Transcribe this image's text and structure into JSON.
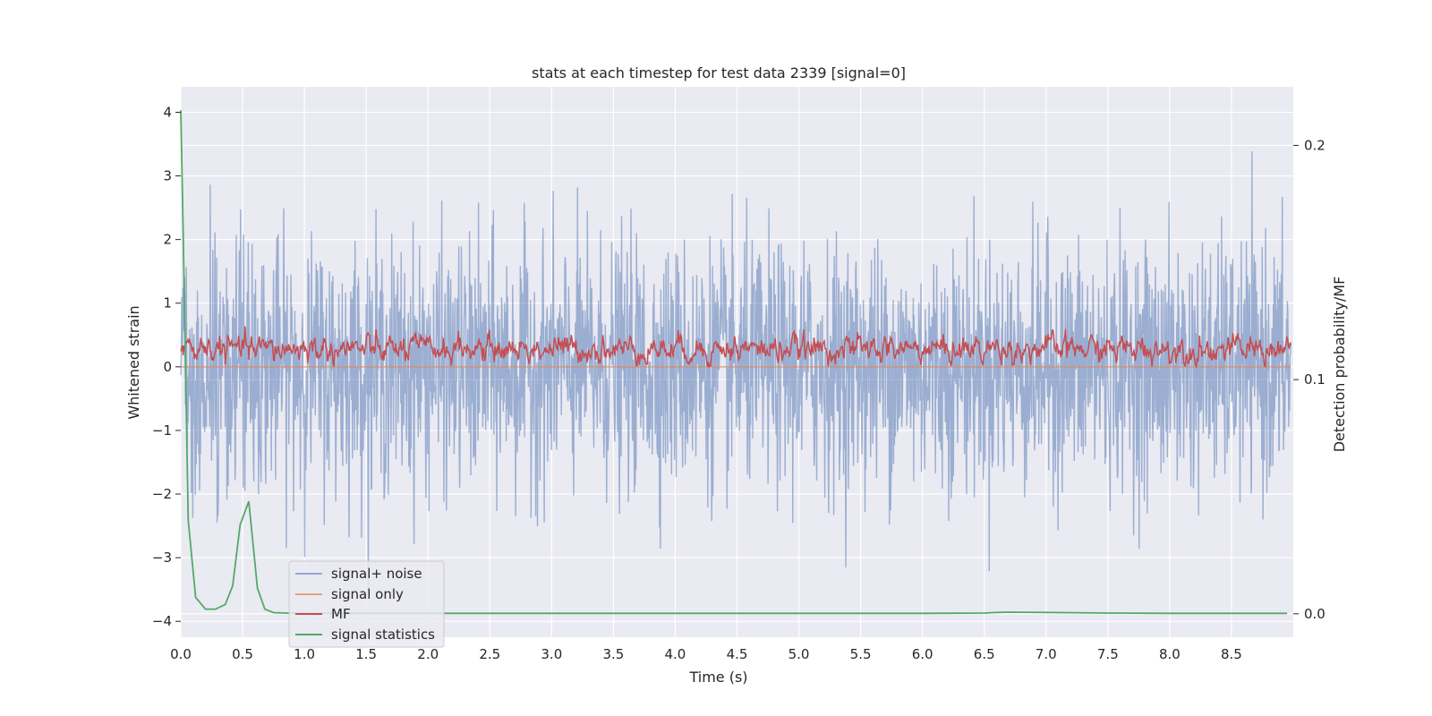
{
  "chart_data": {
    "type": "line",
    "title": "stats at each timestep for test data 2339 [signal=0]",
    "xlabel": "Time (s)",
    "ylabel": "Whitened strain",
    "ylabel_right": "Detection probability/MF",
    "xlim": [
      0.0,
      9.0
    ],
    "ylim": [
      -4.25,
      4.4
    ],
    "ylim_right": [
      -0.01,
      0.225
    ],
    "x_ticks": [
      0.0,
      0.5,
      1.0,
      1.5,
      2.0,
      2.5,
      3.0,
      3.5,
      4.0,
      4.5,
      5.0,
      5.5,
      6.0,
      6.5,
      7.0,
      7.5,
      8.0,
      8.5
    ],
    "x_tick_labels": [
      "0.0",
      "0.5",
      "1.0",
      "1.5",
      "2.0",
      "2.5",
      "3.0",
      "3.5",
      "4.0",
      "4.5",
      "5.0",
      "5.5",
      "6.0",
      "6.5",
      "7.0",
      "7.5",
      "8.0",
      "8.5"
    ],
    "y_ticks": [
      4,
      3,
      2,
      1,
      0,
      -1,
      -2,
      -3,
      -4
    ],
    "y_tick_labels": [
      "4",
      "3",
      "2",
      "1",
      "0",
      "−1",
      "−2",
      "−3",
      "−4"
    ],
    "y_right_ticks": [
      0.2,
      0.1,
      0.0
    ],
    "y_right_tick_labels": [
      "0.2",
      "0.1",
      "0.0"
    ],
    "grid": true,
    "legend_position": "lower-left",
    "colors": {
      "background": "#eaeaf2",
      "grid": "#ffffff",
      "signal_noise": "#4c72b0",
      "signal_only": "#dd8452",
      "mf": "#c44e52",
      "signal_statistics": "#55a868"
    },
    "series": [
      {
        "name": "signal+ noise",
        "axis": "left",
        "description_values": {
          "samples": "noise-like whitened strain, values mostly within [-3.7, 4.05]",
          "max": 4.05,
          "min": -3.72
        }
      },
      {
        "name": "signal only",
        "axis": "left",
        "values_constant": 0.0
      },
      {
        "name": "MF",
        "axis": "left",
        "description_values": {
          "range": [
            0.0,
            0.98
          ]
        }
      },
      {
        "name": "signal statistics",
        "axis": "right",
        "x": [
          0.0,
          0.02,
          0.06,
          0.12,
          0.2,
          0.28,
          0.36,
          0.42,
          0.48,
          0.55,
          0.62,
          0.68,
          0.75,
          0.85,
          1.0,
          2.0,
          3.0,
          3.5,
          4.0,
          5.0,
          6.0,
          6.5,
          6.6,
          6.7,
          7.0,
          7.5,
          8.0,
          8.5,
          8.95
        ],
        "values": [
          0.215,
          0.16,
          0.04,
          0.007,
          0.002,
          0.002,
          0.004,
          0.012,
          0.038,
          0.048,
          0.011,
          0.002,
          0.0005,
          0.0003,
          0.0002,
          0.0002,
          0.0002,
          0.0002,
          0.0002,
          0.0002,
          0.0002,
          0.0003,
          0.0006,
          0.0007,
          0.0006,
          0.0003,
          0.0002,
          0.0002,
          0.0002
        ]
      }
    ],
    "legend": [
      "signal+ noise",
      "signal only",
      "MF",
      "signal statistics"
    ]
  }
}
